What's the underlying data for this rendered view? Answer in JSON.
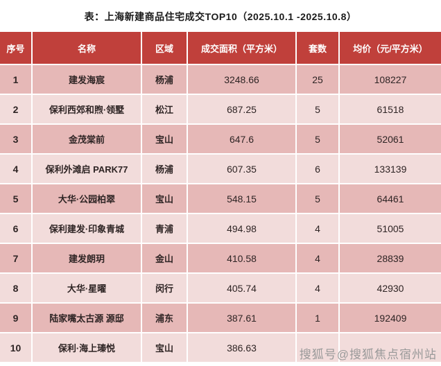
{
  "title": "表：上海新建商品住宅成交TOP10（2025.10.1 -2025.10.8）",
  "watermark": "搜狐号@搜狐焦点宿州站",
  "colors": {
    "header_bg": "#c0403b",
    "header_text": "#ffffff",
    "row_odd_bg": "#e6b8b7",
    "row_even_bg": "#f2dcdb",
    "cell_text": "#2e2424",
    "title_text": "#1a1a1a",
    "grid": "#ffffff",
    "watermark_text": "#9a9a9a"
  },
  "chart_data": {
    "type": "table",
    "title": "表：上海新建商品住宅成交TOP10（2025.10.1 -2025.10.8）",
    "columns": [
      "序号",
      "名称",
      "区域",
      "成交面积（平方米）",
      "套数",
      "均价（元/平方米）"
    ],
    "rows": [
      [
        "1",
        "建发海宸",
        "杨浦",
        "3248.66",
        "25",
        "108227"
      ],
      [
        "2",
        "保利西郊和煦·领墅",
        "松江",
        "687.25",
        "5",
        "61518"
      ],
      [
        "3",
        "金茂棠前",
        "宝山",
        "647.6",
        "5",
        "52061"
      ],
      [
        "4",
        "保利外滩启 PARK77",
        "杨浦",
        "607.35",
        "6",
        "133139"
      ],
      [
        "5",
        "大华·公园柏翠",
        "宝山",
        "548.15",
        "5",
        "64461"
      ],
      [
        "6",
        "保利建发·印象青城",
        "青浦",
        "494.98",
        "4",
        "51005"
      ],
      [
        "7",
        "建发朗玥",
        "金山",
        "410.58",
        "4",
        "28839"
      ],
      [
        "8",
        "大华·星曜",
        "闵行",
        "405.74",
        "4",
        "42930"
      ],
      [
        "9",
        "陆家嘴太古源 源邸",
        "浦东",
        "387.61",
        "1",
        "192409"
      ],
      [
        "10",
        "保利·海上瑧悦",
        "宝山",
        "386.63",
        "",
        ""
      ]
    ]
  }
}
